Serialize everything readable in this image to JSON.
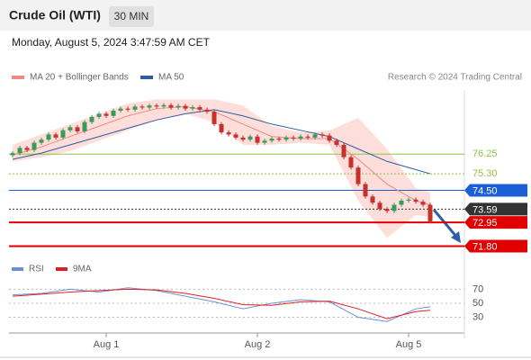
{
  "header": {
    "title": "Crude Oil (WTI)",
    "interval": "30 MIN",
    "timestamp": "Monday, August 5, 2024 3:47:59 AM CET"
  },
  "chart_data": [
    {
      "type": "candlestick",
      "legend": [
        "MA 20 + Bollinger Bands",
        "MA 50"
      ],
      "legend_colors": [
        "#f08a80",
        "#2e5c9e"
      ],
      "source": "Research © 2024 Trading Central",
      "categories": [
        null,
        null,
        null,
        null,
        null,
        null,
        null,
        null,
        null,
        null,
        null,
        null,
        null,
        "Aug 1",
        null,
        null,
        null,
        null,
        null,
        null,
        null,
        null,
        null,
        null,
        null,
        null,
        null,
        null,
        null,
        null,
        null,
        null,
        null,
        null,
        "Aug 2",
        null,
        null,
        null,
        null,
        null,
        null,
        null,
        null,
        null,
        null,
        null,
        null,
        null,
        null,
        null,
        null,
        null,
        null,
        null,
        null,
        "Aug 5",
        null,
        null,
        null
      ],
      "open": [
        76.2,
        76.3,
        76.55,
        76.45,
        76.8,
        76.95,
        77.2,
        77.05,
        77.4,
        77.55,
        77.35,
        77.8,
        78.05,
        78.2,
        78.1,
        78.35,
        78.45,
        78.4,
        78.55,
        78.5,
        78.6,
        78.55,
        78.62,
        78.5,
        78.58,
        78.45,
        78.52,
        78.4,
        78.3,
        77.7,
        77.3,
        77.2,
        77.05,
        76.95,
        77.1,
        76.8,
        76.9,
        77.0,
        76.95,
        77.05,
        77.0,
        77.1,
        77.05,
        77.2,
        77.15,
        76.9,
        76.7,
        76.1,
        75.6,
        74.8,
        74.2,
        73.9,
        73.6,
        73.5,
        73.8,
        74.0,
        74.05,
        73.95,
        73.8
      ],
      "high": [
        76.4,
        76.65,
        76.65,
        76.9,
        77.05,
        77.3,
        77.3,
        77.5,
        77.65,
        77.65,
        77.9,
        78.15,
        78.3,
        78.3,
        78.45,
        78.55,
        78.55,
        78.65,
        78.65,
        78.7,
        78.7,
        78.72,
        78.72,
        78.68,
        78.68,
        78.62,
        78.62,
        78.5,
        78.4,
        77.8,
        77.4,
        77.3,
        77.15,
        77.2,
        77.2,
        77.0,
        77.1,
        77.1,
        77.15,
        77.15,
        77.2,
        77.2,
        77.3,
        77.3,
        77.25,
        77.0,
        76.8,
        76.2,
        75.7,
        74.9,
        74.3,
        74.0,
        73.7,
        73.9,
        74.1,
        74.15,
        74.15,
        74.05,
        73.9
      ],
      "low": [
        76.1,
        76.2,
        76.35,
        76.35,
        76.7,
        76.85,
        76.95,
        76.95,
        77.3,
        77.25,
        77.25,
        77.7,
        77.95,
        78.0,
        78.0,
        78.25,
        78.3,
        78.3,
        78.4,
        78.4,
        78.45,
        78.45,
        78.4,
        78.4,
        78.35,
        78.35,
        78.3,
        78.2,
        77.6,
        77.2,
        77.1,
        76.95,
        76.85,
        76.85,
        76.7,
        76.7,
        76.8,
        76.85,
        76.85,
        76.9,
        76.9,
        76.95,
        76.95,
        77.05,
        76.8,
        76.6,
        76.0,
        75.5,
        74.7,
        74.1,
        73.8,
        73.5,
        73.4,
        73.4,
        73.7,
        73.9,
        73.85,
        73.7,
        72.9
      ],
      "close": [
        76.3,
        76.55,
        76.45,
        76.8,
        76.95,
        77.2,
        77.05,
        77.4,
        77.55,
        77.35,
        77.8,
        78.05,
        78.2,
        78.1,
        78.35,
        78.45,
        78.4,
        78.55,
        78.5,
        78.6,
        78.55,
        78.62,
        78.5,
        78.58,
        78.45,
        78.52,
        78.4,
        78.3,
        77.7,
        77.3,
        77.2,
        77.05,
        76.95,
        77.1,
        76.8,
        76.9,
        77.0,
        76.95,
        77.05,
        77.0,
        77.1,
        77.05,
        77.2,
        77.15,
        76.9,
        76.7,
        76.1,
        75.6,
        74.8,
        74.2,
        73.9,
        73.6,
        73.5,
        73.8,
        74.0,
        74.05,
        73.95,
        73.8,
        73.0
      ],
      "up_color": "#3a9a5a",
      "down_color": "#c8312b",
      "x": [
        0,
        4,
        8,
        12,
        16,
        20,
        24,
        28,
        32,
        36,
        40,
        44,
        48,
        52,
        56,
        58
      ],
      "ma20": [
        76.2,
        76.6,
        77.1,
        77.6,
        78.1,
        78.45,
        78.55,
        78.3,
        77.7,
        77.1,
        77.0,
        77.0,
        76.0,
        74.8,
        74.0,
        73.8
      ],
      "ma50": [
        76.0,
        76.3,
        76.7,
        77.1,
        77.5,
        77.9,
        78.2,
        78.4,
        78.1,
        77.7,
        77.4,
        77.1,
        76.5,
        75.9,
        75.5,
        75.3
      ],
      "bollinger_upper": [
        76.7,
        77.2,
        77.7,
        78.2,
        78.7,
        78.9,
        78.9,
        78.9,
        78.6,
        77.6,
        77.3,
        77.4,
        78.0,
        76.5,
        74.6,
        74.4
      ],
      "bollinger_lower": [
        75.9,
        76.1,
        76.4,
        76.9,
        77.4,
        77.9,
        78.2,
        77.8,
        76.7,
        76.7,
        76.8,
        76.7,
        74.0,
        72.2,
        73.3,
        73.2
      ],
      "band_color": "#fcd6d2",
      "ylim": [
        71.3,
        79.35
      ],
      "levels": [
        {
          "value": 76.25,
          "label": "76.25",
          "color": "#8dc63f",
          "style": "solid",
          "box": false
        },
        {
          "value": 75.3,
          "label": "75.30",
          "color": "#8dc63f",
          "style": "dotted",
          "box": false
        },
        {
          "value": 74.5,
          "label": "74.50",
          "color": "#1b5fd6",
          "style": "solid",
          "box": true
        },
        {
          "value": 73.59,
          "label": "73.59",
          "color": "#333333",
          "style": "dotted",
          "box": true
        },
        {
          "value": 72.95,
          "label": "72.95",
          "color": "#e00000",
          "style": "thick",
          "box": true
        },
        {
          "value": 71.8,
          "label": "71.80",
          "color": "#e00000",
          "style": "thick",
          "box": true
        }
      ]
    },
    {
      "type": "line",
      "x": [
        0,
        4,
        8,
        12,
        16,
        20,
        24,
        28,
        32,
        36,
        40,
        44,
        48,
        52,
        56,
        58
      ],
      "series": [
        {
          "name": "RSI",
          "color": "#6a8fd8",
          "values": [
            62,
            64,
            70,
            66,
            72,
            68,
            60,
            52,
            42,
            50,
            55,
            52,
            30,
            24,
            42,
            45
          ]
        },
        {
          "name": "9MA",
          "color": "#e02020",
          "values": [
            60,
            63,
            66,
            68,
            70,
            69,
            64,
            57,
            48,
            47,
            52,
            53,
            42,
            28,
            38,
            40
          ]
        }
      ],
      "ylim": [
        5,
        91
      ],
      "yticks": [
        70,
        50,
        30
      ]
    }
  ]
}
